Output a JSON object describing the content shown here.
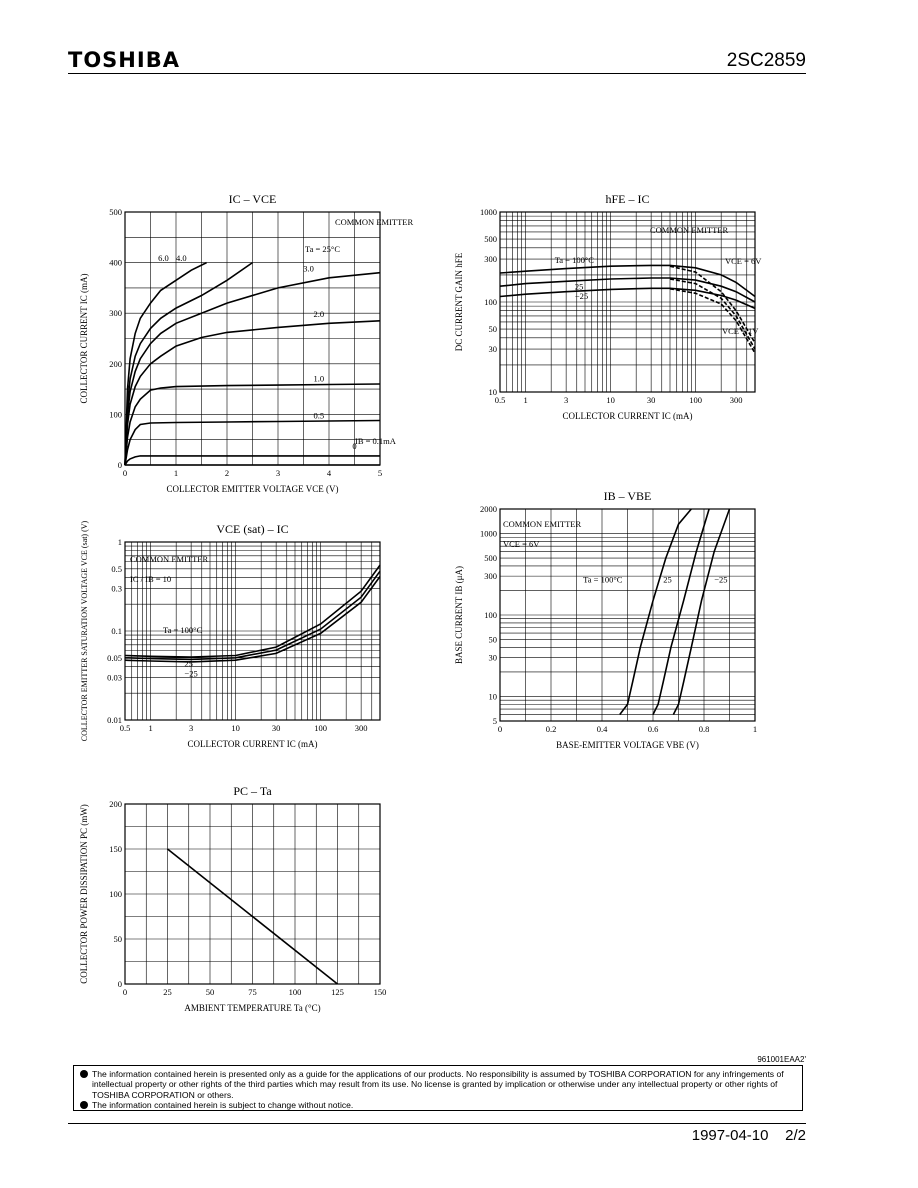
{
  "header": {
    "brand": "TOSHIBA",
    "part_number": "2SC2859"
  },
  "footer": {
    "date_page": "1997-04-10    2/2"
  },
  "notice": {
    "code": "961001EAA2'",
    "items": [
      "The information contained herein is presented only as a guide for the applications of our products. No responsibility is assumed by TOSHIBA CORPORATION for any infringements of intellectual property or other rights of the third parties which may result from its use. No license is granted by implication or otherwise under any intellectual property or other rights of TOSHIBA CORPORATION or others.",
      "The information contained herein is subject to change without notice."
    ]
  },
  "chart_data": [
    {
      "id": "ic-vce",
      "type": "line",
      "title": "IC – VCE",
      "xlabel": "COLLECTOR EMITTER VOLTAGE  VCE  (V)",
      "ylabel": "COLLECTOR CURRENT  IC  (mA)",
      "xlim": [
        0,
        5
      ],
      "ylim": [
        0,
        500
      ],
      "xscale": "linear",
      "yscale": "linear",
      "xticks": [
        0,
        1,
        2,
        3,
        4,
        5
      ],
      "yticks": [
        0,
        100,
        200,
        300,
        400,
        500
      ],
      "annotations": [
        "COMMON EMITTER",
        "Ta = 25°C",
        "IB = 0.1mA"
      ],
      "series": [
        {
          "name": "6.0",
          "x": [
            0,
            0.05,
            0.1,
            0.2,
            0.3,
            0.5,
            0.7,
            1.0,
            1.3,
            1.6
          ],
          "y": [
            0,
            150,
            210,
            260,
            290,
            320,
            345,
            365,
            385,
            400
          ]
        },
        {
          "name": "4.0",
          "x": [
            0,
            0.05,
            0.1,
            0.2,
            0.3,
            0.5,
            0.7,
            1.0,
            1.5,
            2.0,
            2.5
          ],
          "y": [
            0,
            120,
            170,
            215,
            240,
            270,
            290,
            310,
            335,
            365,
            400
          ]
        },
        {
          "name": "3.0",
          "x": [
            0,
            0.05,
            0.1,
            0.2,
            0.3,
            0.5,
            0.7,
            1.0,
            1.5,
            2.0,
            3.0,
            4.0,
            5.0
          ],
          "y": [
            0,
            100,
            145,
            185,
            210,
            240,
            260,
            280,
            300,
            320,
            350,
            370,
            380
          ]
        },
        {
          "name": "2.0",
          "x": [
            0,
            0.05,
            0.1,
            0.2,
            0.3,
            0.5,
            0.7,
            1.0,
            1.5,
            2.0,
            3.0,
            4.0,
            5.0
          ],
          "y": [
            0,
            80,
            120,
            155,
            175,
            200,
            215,
            235,
            252,
            262,
            272,
            280,
            285
          ]
        },
        {
          "name": "1.0",
          "x": [
            0,
            0.05,
            0.1,
            0.2,
            0.3,
            0.5,
            0.7,
            1.0,
            2.0,
            3.0,
            4.0,
            5.0
          ],
          "y": [
            0,
            55,
            85,
            115,
            130,
            148,
            152,
            155,
            157,
            158,
            159,
            160
          ]
        },
        {
          "name": "0.5",
          "x": [
            0,
            0.05,
            0.1,
            0.2,
            0.3,
            0.5,
            1.0,
            2.0,
            3.0,
            4.0,
            5.0
          ],
          "y": [
            0,
            30,
            50,
            70,
            80,
            83,
            84,
            85,
            86,
            87,
            88
          ]
        },
        {
          "name": "0.1mA",
          "x": [
            0,
            0.05,
            0.1,
            0.2,
            0.3,
            0.5,
            1.0,
            2.0,
            3.0,
            4.0,
            5.0
          ],
          "y": [
            0,
            8,
            12,
            16,
            18,
            18,
            18,
            18,
            18,
            18,
            18
          ]
        },
        {
          "name": "0",
          "x": [
            0,
            5
          ],
          "y": [
            0,
            0
          ]
        }
      ]
    },
    {
      "id": "hfe-ic",
      "type": "line",
      "title": "hFE – IC",
      "xlabel": "COLLECTOR CURRENT  IC  (mA)",
      "ylabel": "DC CURRENT GAIN  hFE",
      "xlim": [
        0.5,
        500
      ],
      "ylim": [
        10,
        1000
      ],
      "xscale": "log",
      "yscale": "log",
      "xticks": [
        0.5,
        1,
        3,
        10,
        30,
        100,
        300
      ],
      "yticks": [
        10,
        30,
        50,
        100,
        300,
        500,
        1000
      ],
      "annotations": [
        "COMMON EMITTER",
        "VCE = 6V",
        "VCE = 1V"
      ],
      "series": [
        {
          "name": "Ta = 100°C",
          "group": "VCE = 6V",
          "x": [
            0.5,
            1,
            3,
            10,
            30,
            50,
            100,
            200,
            300,
            500
          ],
          "y": [
            210,
            220,
            235,
            250,
            255,
            255,
            240,
            200,
            165,
            115
          ]
        },
        {
          "name": "25",
          "group": "VCE = 6V",
          "x": [
            0.5,
            1,
            3,
            10,
            30,
            50,
            100,
            200,
            300,
            500
          ],
          "y": [
            150,
            160,
            170,
            180,
            185,
            185,
            175,
            150,
            130,
            100
          ]
        },
        {
          "name": "−25",
          "group": "VCE = 6V",
          "x": [
            0.5,
            1,
            3,
            10,
            30,
            50,
            100,
            200,
            300,
            500
          ],
          "y": [
            115,
            122,
            130,
            138,
            142,
            142,
            135,
            118,
            105,
            85
          ]
        },
        {
          "name": "Ta = 100°C",
          "group": "VCE = 1V",
          "x": [
            50,
            100,
            200,
            300,
            500
          ],
          "y": [
            250,
            215,
            130,
            80,
            35
          ]
        },
        {
          "name": "25",
          "group": "VCE = 1V",
          "x": [
            50,
            100,
            200,
            300,
            500
          ],
          "y": [
            180,
            160,
            110,
            70,
            30
          ]
        },
        {
          "name": "−25",
          "group": "VCE = 1V",
          "x": [
            50,
            100,
            200,
            300,
            500
          ],
          "y": [
            140,
            125,
            95,
            62,
            27
          ]
        }
      ]
    },
    {
      "id": "vcesat-ic",
      "type": "line",
      "title": "VCE (sat) – IC",
      "xlabel": "COLLECTOR CURRENT  IC  (mA)",
      "ylabel": "COLLECTOR EMITTER SATURATION VOLTAGE  VCE (sat)  (V)",
      "xlim": [
        0.5,
        500
      ],
      "ylim": [
        0.01,
        1
      ],
      "xscale": "log",
      "yscale": "log",
      "xticks": [
        0.5,
        1,
        3,
        10,
        30,
        100,
        300
      ],
      "yticks": [
        0.01,
        0.03,
        0.05,
        0.1,
        0.3,
        0.5,
        1
      ],
      "annotations": [
        "COMMON EMITTER",
        "IC / IB = 10"
      ],
      "series": [
        {
          "name": "Ta = 100°C",
          "x": [
            0.5,
            1,
            3,
            10,
            30,
            100,
            300,
            500
          ],
          "y": [
            0.053,
            0.052,
            0.051,
            0.053,
            0.066,
            0.12,
            0.28,
            0.55
          ]
        },
        {
          "name": "25",
          "x": [
            0.5,
            1,
            3,
            10,
            30,
            100,
            300,
            500
          ],
          "y": [
            0.05,
            0.049,
            0.048,
            0.05,
            0.061,
            0.105,
            0.24,
            0.47
          ]
        },
        {
          "name": "−25",
          "x": [
            0.5,
            1,
            3,
            10,
            30,
            100,
            300,
            500
          ],
          "y": [
            0.047,
            0.046,
            0.045,
            0.047,
            0.056,
            0.094,
            0.21,
            0.41
          ]
        }
      ]
    },
    {
      "id": "ib-vbe",
      "type": "line",
      "title": "IB – VBE",
      "xlabel": "BASE-EMITTER VOLTAGE  VBE  (V)",
      "ylabel": "BASE CURRENT  IB  (μA)",
      "xlim": [
        0,
        1.0
      ],
      "ylim": [
        5,
        2000
      ],
      "xscale": "linear",
      "yscale": "log",
      "xticks": [
        0,
        0.2,
        0.4,
        0.6,
        0.8,
        1.0
      ],
      "yticks": [
        5,
        10,
        30,
        50,
        100,
        300,
        500,
        1000,
        2000
      ],
      "annotations": [
        "COMMON EMITTER",
        "VCE = 6V"
      ],
      "series": [
        {
          "name": "Ta = 100°C",
          "x": [
            0.47,
            0.5,
            0.52,
            0.55,
            0.6,
            0.65,
            0.7,
            0.75
          ],
          "y": [
            6,
            8,
            15,
            40,
            150,
            500,
            1300,
            2000
          ]
        },
        {
          "name": "25",
          "x": [
            0.6,
            0.62,
            0.64,
            0.67,
            0.72,
            0.77,
            0.82
          ],
          "y": [
            6,
            8,
            15,
            40,
            150,
            600,
            2000
          ]
        },
        {
          "name": "−25",
          "x": [
            0.68,
            0.7,
            0.72,
            0.75,
            0.79,
            0.84,
            0.9
          ],
          "y": [
            6,
            8,
            15,
            40,
            150,
            600,
            2000
          ]
        }
      ]
    },
    {
      "id": "pc-ta",
      "type": "line",
      "title": "PC – Ta",
      "xlabel": "AMBIENT TEMPERATURE  Ta  (°C)",
      "ylabel": "COLLECTOR POWER DISSIPATION  PC  (mW)",
      "xlim": [
        0,
        150
      ],
      "ylim": [
        0,
        200
      ],
      "xscale": "linear",
      "yscale": "linear",
      "xticks": [
        0,
        25,
        50,
        75,
        100,
        125,
        150
      ],
      "yticks": [
        0,
        50,
        100,
        150,
        200
      ],
      "annotations": [],
      "series": [
        {
          "name": "",
          "x": [
            25,
            125
          ],
          "y": [
            150,
            0
          ]
        }
      ]
    }
  ]
}
